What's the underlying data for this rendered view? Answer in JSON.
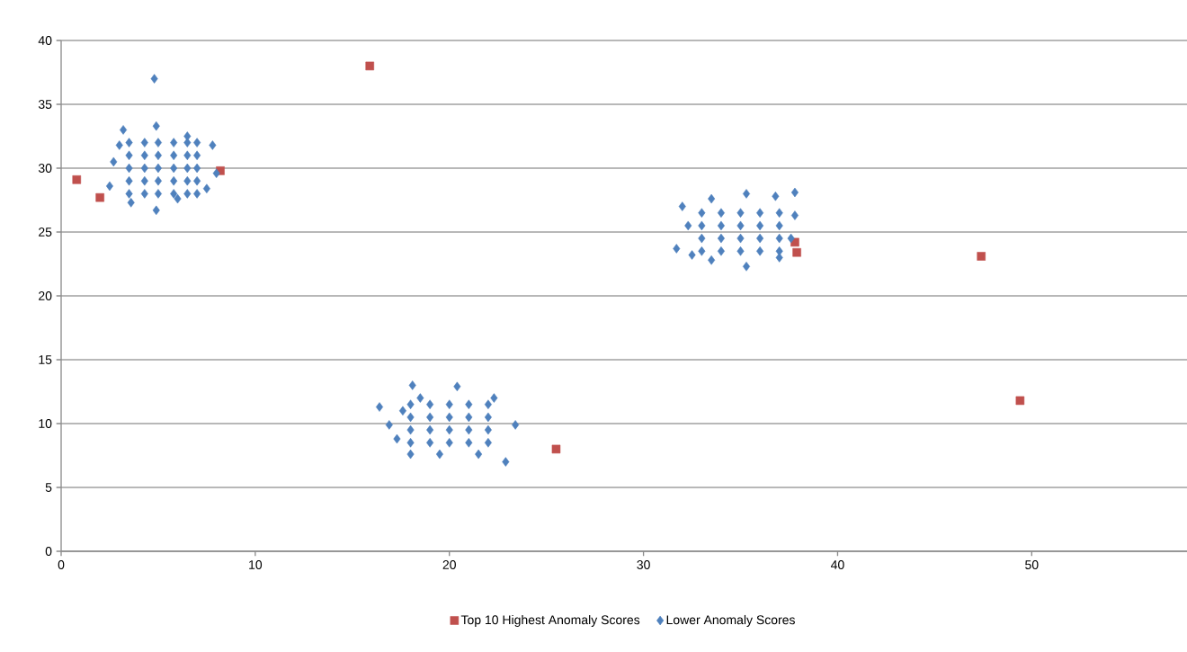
{
  "chart_data": {
    "type": "scatter",
    "xlim": [
      0,
      58
    ],
    "ylim": [
      0,
      40
    ],
    "xticks": [
      0,
      10,
      20,
      30,
      40,
      50
    ],
    "yticks": [
      0,
      5,
      10,
      15,
      20,
      25,
      30,
      35,
      40
    ],
    "grid": "y",
    "legend": "bottom",
    "series": [
      {
        "name": "Top 10 Highest Anomaly Scores",
        "color": "#c0504d",
        "marker": "square",
        "x": [
          0.8,
          2.0,
          8.2,
          15.9,
          25.5,
          37.8,
          37.9,
          47.4,
          49.4
        ],
        "values": [
          29.1,
          27.7,
          29.8,
          38.0,
          8.0,
          24.2,
          23.4,
          23.1,
          11.8
        ]
      },
      {
        "name": "Lower Anomaly Scores",
        "color": "#4f81bd",
        "marker": "diamond",
        "x": [
          4.8,
          3.2,
          4.9,
          6.5,
          7.8,
          8.0,
          7.5,
          6.0,
          4.9,
          3.6,
          2.5,
          2.7,
          3.0,
          3.5,
          4.3,
          5.0,
          5.8,
          6.5,
          7.0,
          3.5,
          4.3,
          5.0,
          5.8,
          6.5,
          7.0,
          3.5,
          4.3,
          5.0,
          5.8,
          6.5,
          7.0,
          3.5,
          4.3,
          5.0,
          5.8,
          6.5,
          7.0,
          3.5,
          4.3,
          5.0,
          5.8,
          6.5,
          7.0,
          16.4,
          18.1,
          20.4,
          22.3,
          23.4,
          22.9,
          21.5,
          19.5,
          18.0,
          17.3,
          16.9,
          17.6,
          18.5,
          18.0,
          19.0,
          20.0,
          21.0,
          22.0,
          18.0,
          19.0,
          20.0,
          21.0,
          22.0,
          18.0,
          19.0,
          20.0,
          21.0,
          22.0,
          18.0,
          19.0,
          20.0,
          21.0,
          22.0,
          37.8,
          32.0,
          33.5,
          35.3,
          36.8,
          37.8,
          37.6,
          37.0,
          35.3,
          33.5,
          32.5,
          31.7,
          32.3,
          33.0,
          34.0,
          35.0,
          36.0,
          37.0,
          33.0,
          34.0,
          35.0,
          36.0,
          37.0,
          33.0,
          34.0,
          35.0,
          36.0,
          37.0,
          33.0,
          34.0,
          35.0,
          36.0,
          37.0
        ],
        "values": [
          37.0,
          33.0,
          33.3,
          32.5,
          31.8,
          29.6,
          28.4,
          27.6,
          26.7,
          27.3,
          28.6,
          30.5,
          31.8,
          28.0,
          28.0,
          28.0,
          28.0,
          28.0,
          28.0,
          29.0,
          29.0,
          29.0,
          29.0,
          29.0,
          29.0,
          30.0,
          30.0,
          30.0,
          30.0,
          30.0,
          30.0,
          31.0,
          31.0,
          31.0,
          31.0,
          31.0,
          31.0,
          32.0,
          32.0,
          32.0,
          32.0,
          32.0,
          32.0,
          11.3,
          13.0,
          12.9,
          12.0,
          9.9,
          7.0,
          7.6,
          7.6,
          7.6,
          8.8,
          9.9,
          11.0,
          12.0,
          8.5,
          8.5,
          8.5,
          8.5,
          8.5,
          9.5,
          9.5,
          9.5,
          9.5,
          9.5,
          10.5,
          10.5,
          10.5,
          10.5,
          10.5,
          11.5,
          11.5,
          11.5,
          11.5,
          11.5,
          28.1,
          27.0,
          27.6,
          28.0,
          27.8,
          26.3,
          24.5,
          23.0,
          22.3,
          22.8,
          23.2,
          23.7,
          25.5,
          23.5,
          23.5,
          23.5,
          23.5,
          23.5,
          24.5,
          24.5,
          24.5,
          24.5,
          24.5,
          25.5,
          25.5,
          25.5,
          25.5,
          25.5,
          26.5,
          26.5,
          26.5,
          26.5,
          26.5
        ]
      }
    ]
  }
}
